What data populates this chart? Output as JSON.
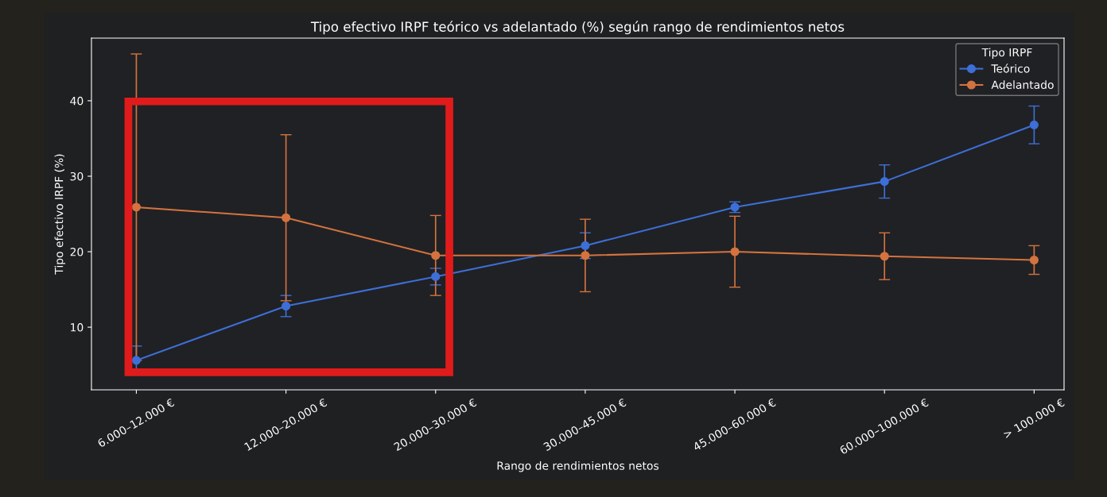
{
  "chart_data": {
    "type": "line",
    "title": "Tipo efectivo IRPF teórico vs adelantado (%) según rango de rendimientos netos",
    "xlabel": "Rango de rendimientos netos",
    "ylabel": "Tipo efectivo IRPF (%)",
    "legend_title": "Tipo IRPF",
    "categories": [
      "6.000–12.000 €",
      "12.000–20.000 €",
      "20.000–30.000 €",
      "30.000–45.000 €",
      "45.000–60.000 €",
      "60.000–100.000 €",
      "> 100.000 €"
    ],
    "series": [
      {
        "name": "Teórico",
        "color": "#3d6fd8",
        "values": [
          5.6,
          12.8,
          16.7,
          20.8,
          25.9,
          29.3,
          36.8
        ],
        "errors": [
          1.9,
          1.4,
          1.1,
          1.7,
          0.7,
          2.2,
          2.5
        ]
      },
      {
        "name": "Adelantado",
        "color": "#d4733f",
        "values": [
          25.9,
          24.5,
          19.5,
          19.5,
          20.0,
          19.4,
          18.9
        ],
        "errors": [
          20.3,
          11.0,
          5.3,
          4.8,
          4.7,
          3.1,
          1.9
        ]
      }
    ],
    "ylim": [
      1.7,
      48.3
    ],
    "yticks": [
      10,
      20,
      30,
      40
    ],
    "grid": false,
    "legend": "top right",
    "marker": "circle",
    "line_style": "solid"
  }
}
